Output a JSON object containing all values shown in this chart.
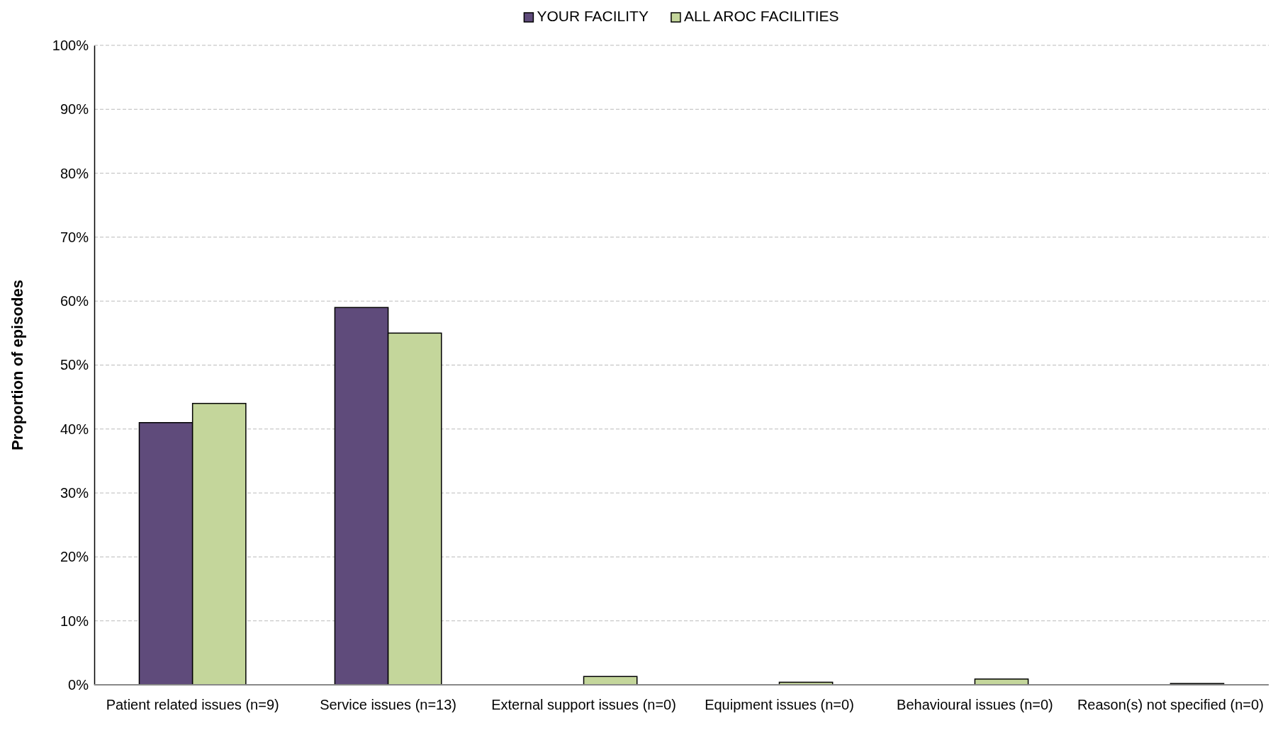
{
  "chart_data": {
    "type": "bar",
    "ylabel": "Proportion of episodes",
    "categories": [
      "Patient related issues (n=9)",
      "Service issues (n=13)",
      "External support issues (n=0)",
      "Equipment issues (n=0)",
      "Behavioural issues (n=0)",
      "Reason(s) not specified (n=0)"
    ],
    "series": [
      {
        "name": "YOUR FACILITY",
        "color": "#5f4b7b",
        "values": [
          41,
          59,
          0,
          0,
          0,
          0
        ]
      },
      {
        "name": "ALL AROC FACILITIES",
        "color": "#c4d69b",
        "values": [
          44,
          55,
          1.3,
          0.4,
          0.9,
          0.2
        ]
      }
    ],
    "ylim": [
      0,
      100
    ],
    "yticks": [
      {
        "value": 0,
        "label": "0%"
      },
      {
        "value": 10,
        "label": "10%"
      },
      {
        "value": 20,
        "label": "20%"
      },
      {
        "value": 30,
        "label": "30%"
      },
      {
        "value": 40,
        "label": "40%"
      },
      {
        "value": 50,
        "label": "50%"
      },
      {
        "value": 60,
        "label": "60%"
      },
      {
        "value": 70,
        "label": "70%"
      },
      {
        "value": 80,
        "label": "80%"
      },
      {
        "value": 90,
        "label": "90%"
      },
      {
        "value": 100,
        "label": "100%"
      }
    ],
    "grid": "y",
    "legend": "top"
  }
}
